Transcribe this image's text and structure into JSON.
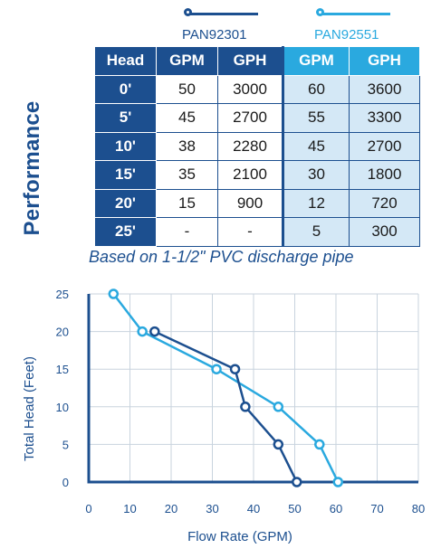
{
  "side_title": "Performance",
  "legend": [
    {
      "name": "PAN92301",
      "color": "#1c4f8f"
    },
    {
      "name": "PAN92551",
      "color": "#2aa9df"
    }
  ],
  "table": {
    "headers": [
      "Head",
      "GPM",
      "GPH",
      "GPM",
      "GPH"
    ],
    "rows": [
      [
        "0'",
        "50",
        "3000",
        "60",
        "3600"
      ],
      [
        "5'",
        "45",
        "2700",
        "55",
        "3300"
      ],
      [
        "10'",
        "38",
        "2280",
        "45",
        "2700"
      ],
      [
        "15'",
        "35",
        "2100",
        "30",
        "1800"
      ],
      [
        "20'",
        "15",
        "900",
        "12",
        "720"
      ],
      [
        "25'",
        "-",
        "-",
        "5",
        "300"
      ]
    ]
  },
  "note": "Based on 1-1/2\" PVC discharge pipe",
  "chart_data": {
    "type": "line",
    "xlabel": "Flow Rate (GPM)",
    "ylabel": "Total Head (Feet)",
    "xlim": [
      0,
      80
    ],
    "ylim": [
      0,
      25
    ],
    "xticks": [
      "0",
      "10",
      "20",
      "30",
      "40",
      "50",
      "60",
      "70",
      "80"
    ],
    "yticks": [
      "0",
      "5",
      "10",
      "15",
      "20",
      "25"
    ],
    "grid": true,
    "series": [
      {
        "name": "PAN92301",
        "color": "#1c4f8f",
        "points": [
          [
            50.5,
            0
          ],
          [
            46,
            5
          ],
          [
            38,
            10
          ],
          [
            35.5,
            15
          ],
          [
            16,
            20
          ]
        ]
      },
      {
        "name": "PAN92551",
        "color": "#2aa9df",
        "points": [
          [
            60.5,
            0
          ],
          [
            56,
            5
          ],
          [
            46,
            10
          ],
          [
            31,
            15
          ],
          [
            13,
            20
          ],
          [
            6,
            25
          ]
        ]
      }
    ]
  }
}
